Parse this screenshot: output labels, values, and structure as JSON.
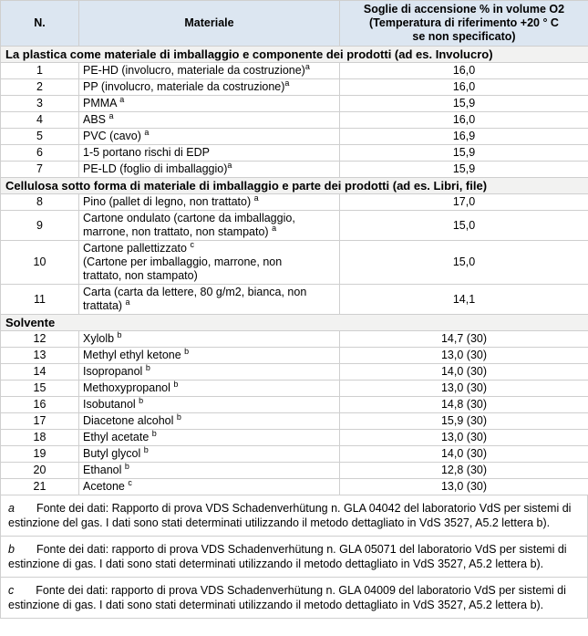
{
  "table": {
    "columns": [
      "N.",
      "Materiale",
      "Soglie di accensione % in volume O2\n(Temperatura di riferimento +20 ° C\nse non specificato)"
    ],
    "rows": [
      {
        "type": "section",
        "title": "La plastica come materiale di imballaggio e componente dei prodotti (ad es. Involucro)"
      },
      {
        "type": "data",
        "n": "1",
        "material": "PE-HD (involucro, materiale da costruzione)^a",
        "value": "16,0"
      },
      {
        "type": "data",
        "n": "2",
        "material": "PP (involucro, materiale da costruzione)^a",
        "value": "16,0"
      },
      {
        "type": "data",
        "n": "3",
        "material": "PMMA ^a",
        "value": "15,9"
      },
      {
        "type": "data",
        "n": "4",
        "material": "ABS ^a",
        "value": "16,0"
      },
      {
        "type": "data",
        "n": "5",
        "material": "PVC (cavo) ^a",
        "value": "16,9"
      },
      {
        "type": "data",
        "n": "6",
        "material": "1-5 portano rischi di EDP",
        "value": "15,9"
      },
      {
        "type": "data",
        "n": "7",
        "material": "PE-LD (foglio di imballaggio)^a",
        "value": "15,9"
      },
      {
        "type": "section",
        "title": "Cellulosa sotto forma di materiale di imballaggio e parte dei prodotti (ad es. Libri, file)"
      },
      {
        "type": "data",
        "n": "8",
        "material": "Pino (pallet di legno, non trattato) ^a",
        "value": "17,0"
      },
      {
        "type": "data",
        "n": "9",
        "material": "Cartone ondulato (cartone da imballaggio,\nmarrone, non trattato, non stampato) ^a",
        "value": "15,0"
      },
      {
        "type": "data",
        "n": "10",
        "material": "Cartone pallettizzato ^c\n(Cartone per imballaggio, marrone, non\ntrattato, non stampato)",
        "value": "15,0"
      },
      {
        "type": "data",
        "n": "11",
        "material": "Carta (carta da lettere, 80 g/m2, bianca, non\ntrattata) ^a",
        "value": "14,1"
      },
      {
        "type": "section",
        "title": "Solvente"
      },
      {
        "type": "data",
        "n": "12",
        "material": "Xylolb ^b",
        "value": "14,7 (30)"
      },
      {
        "type": "data",
        "n": "13",
        "material": "Methyl ethyl ketone ^b",
        "value": "13,0 (30)"
      },
      {
        "type": "data",
        "n": "14",
        "material": "Isopropanol ^b",
        "value": "14,0 (30)"
      },
      {
        "type": "data",
        "n": "15",
        "material": "Methoxypropanol ^b",
        "value": "13,0 (30)"
      },
      {
        "type": "data",
        "n": "16",
        "material": "Isobutanol ^b",
        "value": "14,8 (30)"
      },
      {
        "type": "data",
        "n": "17",
        "material": "Diacetone alcohol ^b",
        "value": "15,9 (30)"
      },
      {
        "type": "data",
        "n": "18",
        "material": "Ethyl acetate ^b",
        "value": "13,0 (30)"
      },
      {
        "type": "data",
        "n": "19",
        "material": "Butyl glycol ^b",
        "value": "14,0 (30)"
      },
      {
        "type": "data",
        "n": "20",
        "material": "Ethanol ^b",
        "value": "12,8 (30)"
      },
      {
        "type": "data",
        "n": "21",
        "material": "Acetone ^c",
        "value": "13,0 (30)"
      }
    ]
  },
  "footnotes": [
    {
      "marker": "a",
      "text": "Fonte dei dati: Rapporto di prova VDS Schadenverhütung n. GLA 04042 del laboratorio VdS per sistemi di estinzione del gas. I dati sono stati determinati utilizzando il metodo dettagliato in VdS 3527, A5.2 lettera b)."
    },
    {
      "marker": "b",
      "text": "Fonte dei dati: rapporto di prova VDS Schadenverhütung n. GLA 05071 del laboratorio VdS per sistemi di estinzione di gas. I dati sono stati determinati utilizzando il metodo dettagliato in VdS 3527, A5.2 lettera b)."
    },
    {
      "marker": "c",
      "text": "Fonte dei dati: rapporto di prova VDS Schadenverhütung n. GLA 04009 del laboratorio VdS per sistemi di estinzione di gas. I dati sono stati determinati utilizzando il metodo dettagliato in VdS 3527, A5.2 lettera b)."
    }
  ],
  "colors": {
    "header_bg": "#dce6f1",
    "section_bg": "#f2f2f1",
    "border": "#cfcfcf",
    "text": "#000000"
  }
}
